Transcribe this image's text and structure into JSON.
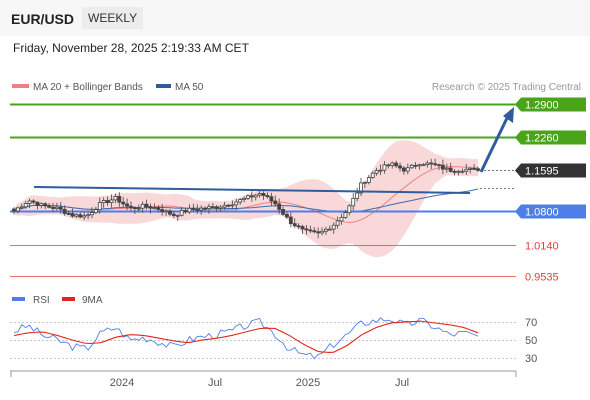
{
  "header": {
    "symbol": "EUR/USD",
    "period": "WEEKLY",
    "datetime": "Friday, November 28, 2025 2:19:33 AM CET"
  },
  "legend": {
    "ma20_label": "MA 20 + Bollinger Bands",
    "ma50_label": "MA 50",
    "source": "Research © 2025 Trading Central"
  },
  "colors": {
    "support_resistance_green": "#4aa41a",
    "pivot_blue": "#4f7ee8",
    "support_red": "#e0413b",
    "trendline": "#2e5c9e",
    "candle": "#444444",
    "ma20": "#f08080",
    "ma50": "#3d6cb0",
    "bands": "#f7d1d1",
    "rsi": "#4f7ee8",
    "rsi_ma": "#e2261d",
    "last_price_bg": "#333333"
  },
  "chart_data": {
    "type": "candlestick",
    "x_tick_labels": [
      "2024",
      "Jul",
      "2025",
      "Jul"
    ],
    "price_levels": [
      {
        "label": "1.2900",
        "value": 1.29,
        "kind": "resistance"
      },
      {
        "label": "1.2260",
        "value": 1.226,
        "kind": "resistance"
      },
      {
        "label": "1.1595",
        "value": 1.1595,
        "kind": "last"
      },
      {
        "label": "1.0800",
        "value": 1.08,
        "kind": "pivot"
      },
      {
        "label": "1.0140",
        "value": 1.014,
        "kind": "support"
      },
      {
        "label": "0.9535",
        "value": 0.9535,
        "kind": "support"
      }
    ],
    "close_anchors": [
      1.08,
      1.101,
      1.09,
      1.085,
      1.072,
      1.07,
      1.095,
      1.105,
      1.085,
      1.09,
      1.084,
      1.072,
      1.082,
      1.085,
      1.088,
      1.095,
      1.105,
      1.115,
      1.095,
      1.06,
      1.04,
      1.035,
      1.052,
      1.082,
      1.135,
      1.16,
      1.172,
      1.16,
      1.175,
      1.17,
      1.16,
      1.162,
      1.1595
    ],
    "rsi": {
      "legend": [
        "RSI",
        "9MA"
      ],
      "ticks": [
        70,
        50,
        30
      ],
      "values": [
        60,
        66,
        55,
        50,
        43,
        40,
        58,
        64,
        50,
        53,
        48,
        42,
        50,
        54,
        56,
        60,
        66,
        70,
        57,
        40,
        33,
        31,
        45,
        56,
        69,
        72,
        74,
        66,
        72,
        65,
        56,
        58,
        54
      ],
      "ma9": [
        55,
        58,
        59,
        55,
        50,
        46,
        47,
        53,
        56,
        55,
        52,
        49,
        47,
        50,
        52,
        55,
        59,
        63,
        63,
        55,
        45,
        37,
        36,
        44,
        56,
        64,
        69,
        70,
        71,
        69,
        67,
        64,
        58
      ]
    }
  }
}
